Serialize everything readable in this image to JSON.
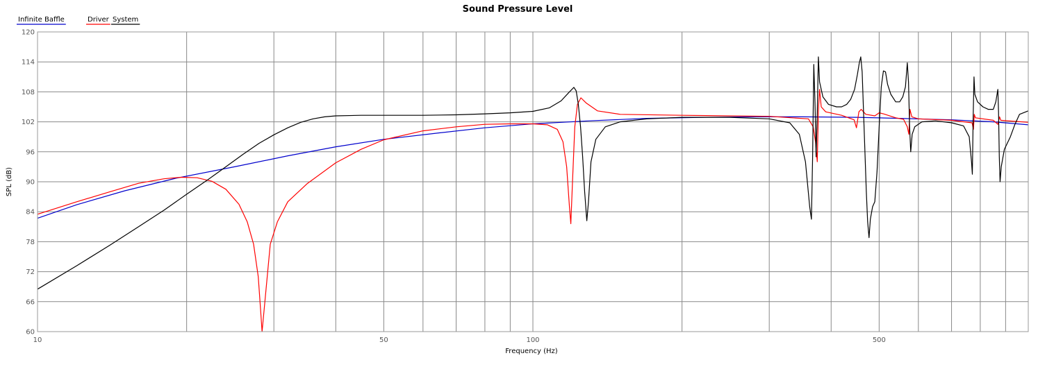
{
  "chart_data": {
    "type": "line",
    "title": "Sound Pressure Level",
    "xlabel": "Frequency (Hz)",
    "ylabel": "SPL (dB)",
    "xscale": "log",
    "xlim": [
      10,
      1000
    ],
    "ylim": [
      60,
      120
    ],
    "xtick_labels": [
      "10",
      "50",
      "100",
      "500"
    ],
    "yticks": [
      "60",
      "66",
      "72",
      "78",
      "84",
      "90",
      "96",
      "102",
      "108",
      "114",
      "120"
    ],
    "grid": true,
    "legend_position": "top-left",
    "series": [
      {
        "name": "Infinite Baffle",
        "color": "#0000cc",
        "points": [
          [
            10,
            82.7
          ],
          [
            12,
            85.4
          ],
          [
            15,
            88.2
          ],
          [
            19,
            90.7
          ],
          [
            25,
            93.0
          ],
          [
            32,
            95.2
          ],
          [
            40,
            97.0
          ],
          [
            50,
            98.5
          ],
          [
            65,
            99.8
          ],
          [
            80,
            100.8
          ],
          [
            100,
            101.6
          ],
          [
            130,
            102.2
          ],
          [
            170,
            102.7
          ],
          [
            220,
            102.9
          ],
          [
            280,
            103.0
          ],
          [
            350,
            103.0
          ],
          [
            450,
            102.9
          ],
          [
            550,
            102.7
          ],
          [
            700,
            102.4
          ],
          [
            850,
            102.0
          ],
          [
            1000,
            101.4
          ]
        ]
      },
      {
        "name": "Driver",
        "color": "#ff0000",
        "points": [
          [
            10,
            83.5
          ],
          [
            12,
            86.0
          ],
          [
            14,
            88.0
          ],
          [
            16,
            89.7
          ],
          [
            18,
            90.6
          ],
          [
            19.5,
            90.9
          ],
          [
            21,
            90.8
          ],
          [
            22.5,
            90.1
          ],
          [
            24,
            88.5
          ],
          [
            25.5,
            85.5
          ],
          [
            26.5,
            82.0
          ],
          [
            27.3,
            77.5
          ],
          [
            27.9,
            71.0
          ],
          [
            28.2,
            64.5
          ],
          [
            28.4,
            60.0
          ],
          [
            28.9,
            68.0
          ],
          [
            29.5,
            77.5
          ],
          [
            30.5,
            82.0
          ],
          [
            32,
            86.0
          ],
          [
            35,
            89.6
          ],
          [
            40,
            93.8
          ],
          [
            45,
            96.5
          ],
          [
            50,
            98.4
          ],
          [
            60,
            100.2
          ],
          [
            70,
            101.0
          ],
          [
            80,
            101.5
          ],
          [
            90,
            101.6
          ],
          [
            100,
            101.6
          ],
          [
            107,
            101.4
          ],
          [
            112,
            100.5
          ],
          [
            115,
            98.0
          ],
          [
            117,
            93.0
          ],
          [
            118.5,
            85.0
          ],
          [
            119.3,
            81.6
          ],
          [
            120.2,
            90.0
          ],
          [
            121.5,
            101.0
          ],
          [
            123,
            105.5
          ],
          [
            125,
            106.8
          ],
          [
            128,
            105.8
          ],
          [
            135,
            104.2
          ],
          [
            150,
            103.5
          ],
          [
            200,
            103.3
          ],
          [
            300,
            103.1
          ],
          [
            360,
            102.6
          ],
          [
            368,
            101.0
          ],
          [
            372,
            98.0
          ],
          [
            375,
            94.0
          ],
          [
            377,
            104.0
          ],
          [
            379,
            108.5
          ],
          [
            382,
            105.0
          ],
          [
            390,
            104.0
          ],
          [
            420,
            103.3
          ],
          [
            445,
            102.4
          ],
          [
            450,
            100.8
          ],
          [
            455,
            104.0
          ],
          [
            460,
            104.5
          ],
          [
            470,
            103.5
          ],
          [
            490,
            103.2
          ],
          [
            500,
            103.8
          ],
          [
            510,
            103.6
          ],
          [
            540,
            102.8
          ],
          [
            560,
            102.5
          ],
          [
            570,
            101.0
          ],
          [
            574,
            99.5
          ],
          [
            577,
            104.5
          ],
          [
            582,
            103.0
          ],
          [
            600,
            102.6
          ],
          [
            700,
            102.3
          ],
          [
            770,
            101.8
          ],
          [
            775,
            100.5
          ],
          [
            778,
            103.5
          ],
          [
            782,
            102.8
          ],
          [
            850,
            102.3
          ],
          [
            868,
            101.5
          ],
          [
            875,
            103.0
          ],
          [
            880,
            102.3
          ],
          [
            1000,
            101.9
          ]
        ]
      },
      {
        "name": "System",
        "color": "#000000",
        "points": [
          [
            10,
            68.5
          ],
          [
            12,
            73.2
          ],
          [
            14,
            77.3
          ],
          [
            16,
            81.0
          ],
          [
            18,
            84.3
          ],
          [
            20,
            87.5
          ],
          [
            22,
            90.3
          ],
          [
            24,
            93.0
          ],
          [
            26,
            95.5
          ],
          [
            28,
            97.7
          ],
          [
            30,
            99.4
          ],
          [
            32,
            100.8
          ],
          [
            34,
            101.9
          ],
          [
            36,
            102.6
          ],
          [
            38,
            103.0
          ],
          [
            40,
            103.2
          ],
          [
            45,
            103.3
          ],
          [
            50,
            103.3
          ],
          [
            60,
            103.3
          ],
          [
            70,
            103.4
          ],
          [
            80,
            103.6
          ],
          [
            90,
            103.8
          ],
          [
            100,
            104.1
          ],
          [
            108,
            104.8
          ],
          [
            114,
            106.2
          ],
          [
            118,
            107.8
          ],
          [
            121,
            108.9
          ],
          [
            122.3,
            108.2
          ],
          [
            123.5,
            105.5
          ],
          [
            124.8,
            101.0
          ],
          [
            126,
            95.0
          ],
          [
            127.2,
            88.0
          ],
          [
            128.5,
            82.2
          ],
          [
            129.5,
            86.0
          ],
          [
            131,
            94.0
          ],
          [
            134,
            98.5
          ],
          [
            140,
            101.0
          ],
          [
            150,
            102.0
          ],
          [
            170,
            102.6
          ],
          [
            200,
            102.9
          ],
          [
            250,
            102.9
          ],
          [
            300,
            102.6
          ],
          [
            330,
            101.8
          ],
          [
            345,
            99.5
          ],
          [
            355,
            94.0
          ],
          [
            362,
            85.0
          ],
          [
            365,
            82.5
          ],
          [
            367,
            95.0
          ],
          [
            369,
            113.5
          ],
          [
            371,
            106.0
          ],
          [
            373,
            95.0
          ],
          [
            375,
            104.0
          ],
          [
            377,
            115.0
          ],
          [
            379,
            110.0
          ],
          [
            385,
            107.0
          ],
          [
            395,
            105.5
          ],
          [
            410,
            105.0
          ],
          [
            420,
            105.0
          ],
          [
            430,
            105.5
          ],
          [
            438,
            106.5
          ],
          [
            446,
            108.5
          ],
          [
            452,
            111.5
          ],
          [
            456,
            113.8
          ],
          [
            459,
            115.0
          ],
          [
            462,
            112.0
          ],
          [
            465,
            104.0
          ],
          [
            468,
            96.0
          ],
          [
            471,
            88.0
          ],
          [
            474,
            82.0
          ],
          [
            477,
            78.8
          ],
          [
            480,
            82.5
          ],
          [
            485,
            85.0
          ],
          [
            490,
            86.0
          ],
          [
            495,
            92.0
          ],
          [
            500,
            101.0
          ],
          [
            505,
            109.0
          ],
          [
            510,
            112.2
          ],
          [
            515,
            112.0
          ],
          [
            520,
            109.5
          ],
          [
            528,
            107.5
          ],
          [
            540,
            106.0
          ],
          [
            550,
            106.0
          ],
          [
            558,
            107.0
          ],
          [
            565,
            109.0
          ],
          [
            570,
            113.8
          ],
          [
            573,
            110.0
          ],
          [
            576,
            101.0
          ],
          [
            579,
            96.0
          ],
          [
            583,
            99.5
          ],
          [
            590,
            101.0
          ],
          [
            610,
            102.0
          ],
          [
            650,
            102.2
          ],
          [
            700,
            101.8
          ],
          [
            740,
            101.2
          ],
          [
            760,
            99.0
          ],
          [
            768,
            94.0
          ],
          [
            771,
            91.5
          ],
          [
            774,
            103.0
          ],
          [
            777,
            111.0
          ],
          [
            780,
            107.5
          ],
          [
            790,
            106.0
          ],
          [
            810,
            105.0
          ],
          [
            830,
            104.5
          ],
          [
            850,
            104.5
          ],
          [
            860,
            106.0
          ],
          [
            868,
            108.5
          ],
          [
            871,
            104.0
          ],
          [
            874,
            95.0
          ],
          [
            877,
            90.0
          ],
          [
            882,
            93.0
          ],
          [
            895,
            96.5
          ],
          [
            920,
            99.0
          ],
          [
            940,
            101.5
          ],
          [
            960,
            103.5
          ],
          [
            1000,
            104.2
          ]
        ]
      }
    ]
  }
}
